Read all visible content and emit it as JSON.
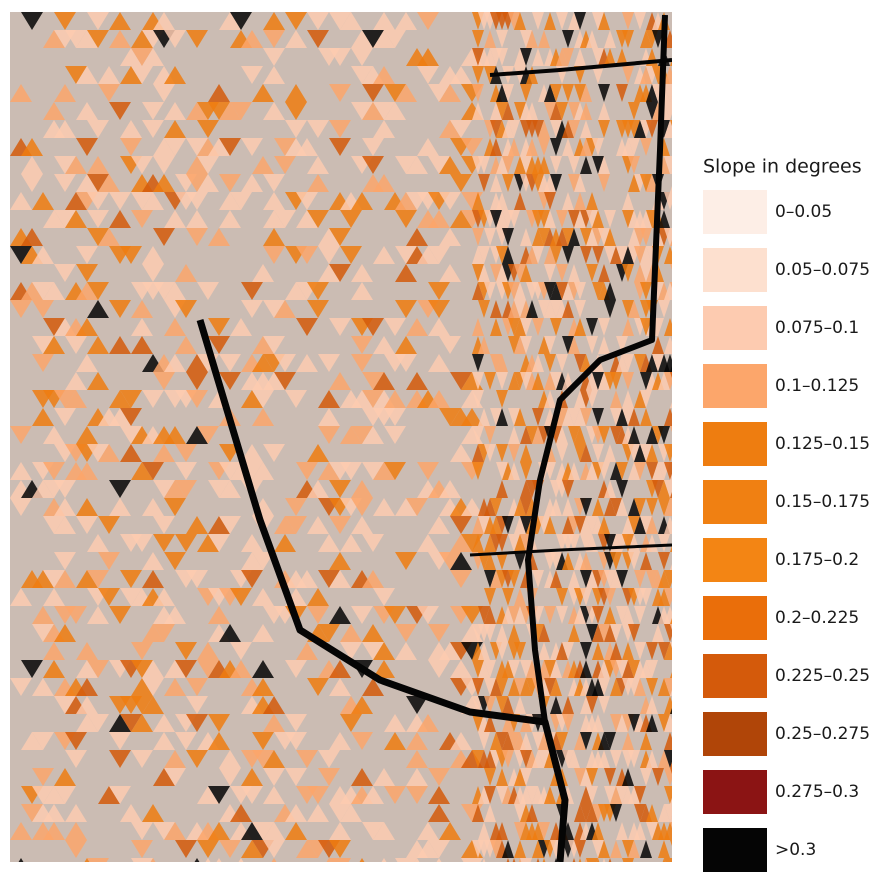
{
  "legend": {
    "title": "Slope in degrees",
    "items": [
      {
        "label": "0–0.05",
        "color": "#fdeee6"
      },
      {
        "label": "0.05–0.075",
        "color": "#fde0cf"
      },
      {
        "label": "0.075–0.1",
        "color": "#fdcbb0"
      },
      {
        "label": "0.1–0.125",
        "color": "#fca66b"
      },
      {
        "label": "0.125–0.15",
        "color": "#ee7d10"
      },
      {
        "label": "0.15–0.175",
        "color": "#f08012"
      },
      {
        "label": "0.175–0.2",
        "color": "#f38514"
      },
      {
        "label": "0.2–0.225",
        "color": "#ea6e0a"
      },
      {
        "label": "0.225–0.25",
        "color": "#d45a0b"
      },
      {
        "label": "0.25–0.275",
        "color": "#b04508"
      },
      {
        "label": "0.275–0.3",
        "color": "#8b1414"
      },
      {
        "label": ">0.3",
        "color": "#050505"
      }
    ]
  }
}
